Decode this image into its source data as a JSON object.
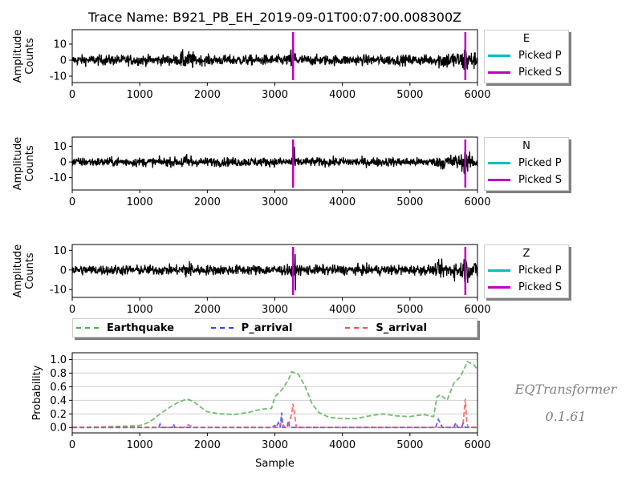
{
  "figure": {
    "title": "Trace Name: B921_PB_EH_2019-09-01T00:07:00.008300Z",
    "watermark_name": "EQTransformer",
    "watermark_version": "0.1.61"
  },
  "colors": {
    "trace": "#000000",
    "picked_p": "#00bfbf",
    "picked_s": "#bf00bf",
    "earthquake": "#4daf4a",
    "p_arrival": "#3b3bff",
    "s_arrival": "#ff4d4d"
  },
  "chart_data": [
    {
      "type": "line",
      "name": "E",
      "xlabel": "",
      "ylabel": "Amplitude\nCounts",
      "xlim": [
        0,
        6000
      ],
      "ylim": [
        -14,
        19
      ],
      "xticks": [
        0,
        1000,
        2000,
        3000,
        4000,
        5000,
        6000
      ],
      "yticks": [
        -10,
        0,
        10
      ],
      "amplitude_range": [
        -12,
        17
      ],
      "picks": {
        "p": [],
        "s": [
          3270,
          5820
        ]
      },
      "legend": {
        "title": "E",
        "items": [
          "Picked P",
          "Picked S"
        ]
      }
    },
    {
      "type": "line",
      "name": "N",
      "xlabel": "",
      "ylabel": "Amplitude\nCounts",
      "xlim": [
        0,
        6000
      ],
      "ylim": [
        -18,
        16
      ],
      "xticks": [
        0,
        1000,
        2000,
        3000,
        4000,
        5000,
        6000
      ],
      "yticks": [
        -10,
        0,
        10
      ],
      "amplitude_range": [
        -14,
        12
      ],
      "picks": {
        "p": [],
        "s": [
          3270,
          5820
        ]
      },
      "legend": {
        "title": "N",
        "items": [
          "Picked P",
          "Picked S"
        ]
      }
    },
    {
      "type": "line",
      "name": "Z",
      "xlabel": "",
      "ylabel": "Amplitude\nCounts",
      "xlim": [
        0,
        6000
      ],
      "ylim": [
        -14,
        13
      ],
      "xticks": [
        0,
        1000,
        2000,
        3000,
        4000,
        5000,
        6000
      ],
      "yticks": [
        -10,
        0,
        10
      ],
      "amplitude_range": [
        -12,
        11
      ],
      "picks": {
        "p": [],
        "s": [
          3270,
          5820
        ]
      },
      "legend": {
        "title": "Z",
        "items": [
          "Picked P",
          "Picked S"
        ]
      }
    },
    {
      "type": "line",
      "name": "Probability",
      "xlabel": "Sample",
      "ylabel": "Probability",
      "xlim": [
        0,
        6000
      ],
      "ylim": [
        -0.08,
        1.1
      ],
      "xticks": [
        0,
        1000,
        2000,
        3000,
        4000,
        5000,
        6000
      ],
      "yticks": [
        0.0,
        0.2,
        0.4,
        0.6,
        0.8,
        1.0
      ],
      "ytick_labels": [
        "0.0",
        "0.2",
        "0.4",
        "0.6",
        "0.8",
        "1.0"
      ],
      "grid": true,
      "legend": {
        "placement": "top",
        "items": [
          "Earthquake",
          "P_arrival",
          "S_arrival"
        ]
      },
      "series": [
        {
          "name": "Earthquake",
          "x": [
            0,
            500,
            800,
            1000,
            1100,
            1200,
            1300,
            1450,
            1550,
            1700,
            1800,
            1900,
            2000,
            2200,
            2400,
            2600,
            2800,
            2950,
            3000,
            3100,
            3200,
            3250,
            3350,
            3450,
            3550,
            3650,
            3800,
            4000,
            4200,
            4400,
            4600,
            4800,
            5000,
            5200,
            5350,
            5400,
            5450,
            5550,
            5650,
            5750,
            5850,
            5950,
            6000
          ],
          "y": [
            0.0,
            0.01,
            0.02,
            0.03,
            0.06,
            0.12,
            0.2,
            0.3,
            0.36,
            0.42,
            0.38,
            0.3,
            0.23,
            0.2,
            0.19,
            0.22,
            0.27,
            0.28,
            0.45,
            0.55,
            0.7,
            0.82,
            0.78,
            0.6,
            0.35,
            0.22,
            0.15,
            0.13,
            0.13,
            0.17,
            0.2,
            0.17,
            0.16,
            0.19,
            0.16,
            0.45,
            0.48,
            0.4,
            0.65,
            0.75,
            0.97,
            0.92,
            0.85
          ]
        },
        {
          "name": "P_arrival",
          "x": [
            0,
            1280,
            1300,
            1320,
            1480,
            1500,
            1520,
            2950,
            3000,
            3020,
            3050,
            3080,
            3100,
            3120,
            3180,
            3200,
            3220,
            3300,
            5380,
            5420,
            5480,
            5650,
            5680,
            5710,
            5760,
            5790,
            5820,
            6000
          ],
          "y": [
            0.0,
            0.0,
            0.05,
            0.0,
            0.0,
            0.05,
            0.0,
            0.0,
            0.03,
            0.0,
            0.07,
            0.0,
            0.22,
            0.0,
            0.0,
            0.1,
            0.0,
            0.0,
            0.0,
            0.12,
            0.0,
            0.0,
            0.07,
            0.0,
            0.0,
            0.06,
            0.0,
            0.0
          ]
        },
        {
          "name": "S_arrival",
          "x": [
            0,
            1650,
            1720,
            1790,
            3050,
            3100,
            3150,
            3200,
            3250,
            3270,
            3290,
            3320,
            5780,
            5800,
            5820,
            5840,
            5860,
            6000
          ],
          "y": [
            0.0,
            0.0,
            0.04,
            0.0,
            0.0,
            0.08,
            0.0,
            0.02,
            0.2,
            0.35,
            0.2,
            0.0,
            0.0,
            0.2,
            0.42,
            0.1,
            0.0,
            0.0
          ]
        }
      ]
    }
  ]
}
